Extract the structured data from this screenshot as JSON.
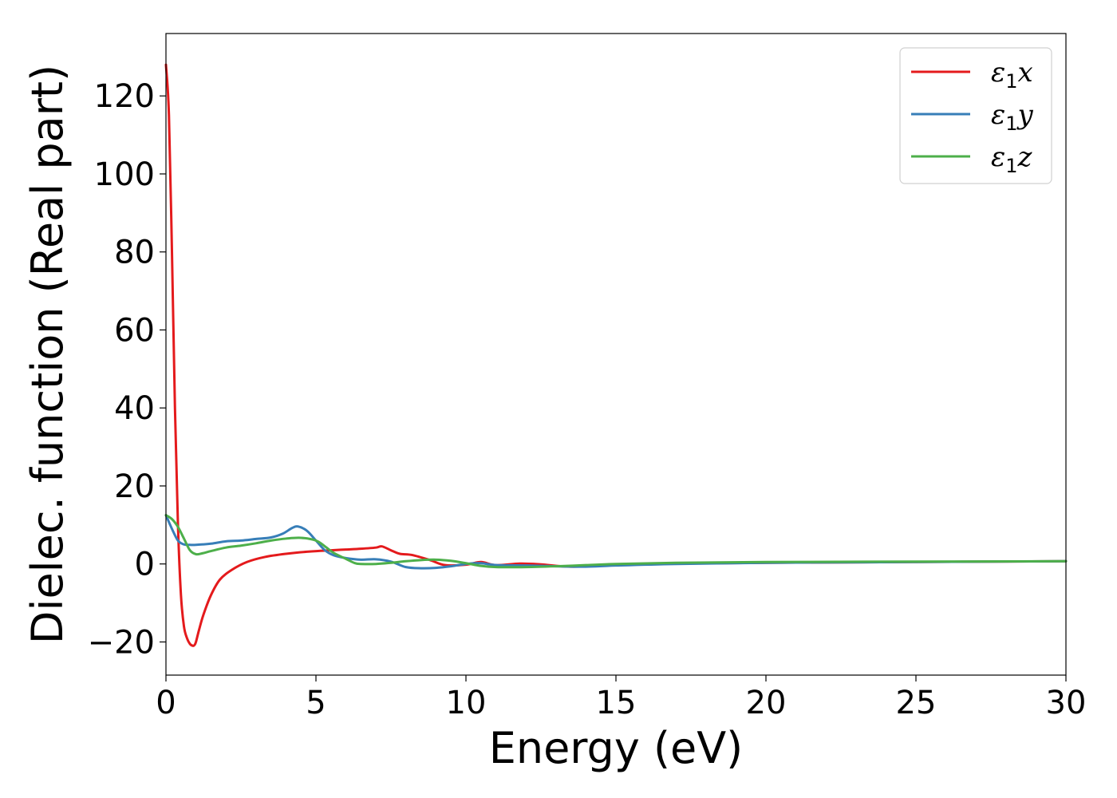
{
  "chart_data": {
    "type": "line",
    "title": "",
    "xlabel": "Energy (eV)",
    "ylabel": "Dielec. function (Real part)",
    "xlim": [
      0,
      30
    ],
    "ylim": [
      -28.5,
      136
    ],
    "xticks": [
      0,
      5,
      10,
      15,
      20,
      25,
      30
    ],
    "xtick_labels": [
      "0",
      "5",
      "10",
      "15",
      "20",
      "25",
      "30"
    ],
    "yticks": [
      -20,
      0,
      20,
      40,
      60,
      80,
      100,
      120
    ],
    "ytick_labels": [
      "−20",
      "0",
      "20",
      "40",
      "60",
      "80",
      "100",
      "120"
    ],
    "grid": false,
    "legend": "top-right",
    "series": [
      {
        "name": "ε1x",
        "label_main": "ε",
        "label_sub": "1",
        "label_var": "x",
        "color": "#e41a1c",
        "x": [
          0,
          0.1,
          0.2,
          0.3,
          0.4,
          0.5,
          0.6,
          0.7,
          0.8,
          0.9,
          0.95,
          1.0,
          1.1,
          1.25,
          1.5,
          1.8,
          2.2,
          2.7,
          3.3,
          4.0,
          4.8,
          5.5,
          6.0,
          6.5,
          7.0,
          7.2,
          7.5,
          7.8,
          8.2,
          8.8,
          9.3,
          10.0,
          10.5,
          11.0,
          11.8,
          12.5,
          13.5,
          15.0,
          17.0,
          20.0,
          25.0,
          30.0
        ],
        "y": [
          128,
          115,
          80,
          40,
          10,
          -8,
          -16,
          -19,
          -20.5,
          -21,
          -20.8,
          -20,
          -17,
          -13,
          -8,
          -4,
          -1.5,
          0.5,
          1.8,
          2.6,
          3.2,
          3.5,
          3.7,
          3.9,
          4.2,
          4.5,
          3.5,
          2.6,
          2.3,
          1.0,
          -0.3,
          -0.2,
          0.5,
          -0.3,
          0.1,
          -0.1,
          -0.7,
          -0.3,
          0.1,
          0.3,
          0.5,
          0.7
        ]
      },
      {
        "name": "ε1y",
        "label_main": "ε",
        "label_sub": "1",
        "label_var": "y",
        "color": "#377eb8",
        "x": [
          0,
          0.2,
          0.4,
          0.6,
          0.8,
          1.0,
          1.5,
          2.0,
          2.5,
          3.0,
          3.5,
          3.9,
          4.2,
          4.4,
          4.7,
          5.0,
          5.3,
          5.6,
          6.0,
          6.5,
          7.0,
          7.5,
          8.0,
          8.5,
          9.0,
          9.5,
          10.0,
          10.5,
          11.0,
          12.0,
          13.0,
          14.0,
          15.0,
          17.0,
          20.0,
          25.0,
          30.0
        ],
        "y": [
          12.5,
          9,
          6,
          5,
          4.9,
          4.9,
          5.2,
          5.8,
          6.0,
          6.4,
          6.8,
          7.8,
          9.2,
          9.6,
          8.5,
          6.0,
          3.5,
          2.2,
          1.5,
          1.1,
          1.2,
          0.6,
          -0.8,
          -1.1,
          -1.0,
          -0.6,
          0.0,
          0.2,
          -0.3,
          -0.4,
          -0.6,
          -0.7,
          -0.4,
          0.0,
          0.3,
          0.5,
          0.7
        ]
      },
      {
        "name": "ε1z",
        "label_main": "ε",
        "label_sub": "1",
        "label_var": "z",
        "color": "#4daf4a",
        "x": [
          0,
          0.2,
          0.4,
          0.6,
          0.8,
          1.0,
          1.2,
          1.5,
          2.0,
          2.5,
          3.0,
          3.5,
          4.0,
          4.5,
          5.0,
          5.3,
          5.6,
          6.0,
          6.3,
          6.5,
          7.0,
          7.5,
          8.0,
          8.5,
          9.0,
          9.5,
          10.0,
          10.5,
          11.0,
          12.0,
          13.0,
          14.0,
          15.0,
          17.0,
          20.0,
          25.0,
          30.0
        ],
        "y": [
          12.5,
          11.5,
          9.5,
          6.5,
          3.5,
          2.5,
          2.7,
          3.3,
          4.2,
          4.7,
          5.3,
          6.0,
          6.5,
          6.7,
          6.0,
          4.5,
          2.8,
          1.3,
          0.2,
          0.0,
          0.0,
          0.3,
          0.7,
          1.0,
          1.1,
          0.8,
          0.2,
          -0.5,
          -0.8,
          -0.8,
          -0.6,
          -0.3,
          0.0,
          0.3,
          0.5,
          0.6,
          0.7
        ]
      }
    ]
  }
}
